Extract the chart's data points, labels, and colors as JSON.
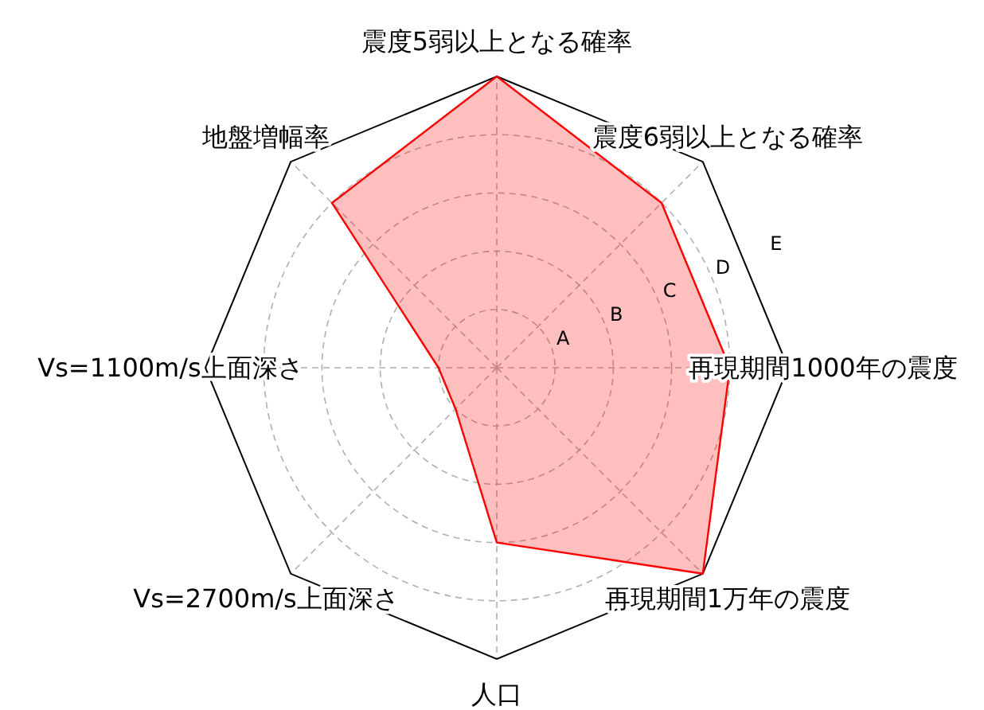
{
  "chart_data": {
    "type": "radar",
    "categories": [
      "震度5弱以上となる確率",
      "震度6弱以上となる確率",
      "再現期間1000年の震度",
      "再現期間1万年の震度",
      "人口",
      "Vs=2700m/s上面深さ",
      "Vs=1100m/s上面深さ",
      "地盤増幅率"
    ],
    "series": [
      {
        "color": "#ff0000",
        "values": [
          5,
          4,
          4,
          5,
          3,
          1,
          1,
          4
        ]
      }
    ],
    "ylim": [
      0,
      5
    ],
    "yticks": [
      {
        "value": 1,
        "label": "A"
      },
      {
        "value": 2,
        "label": "B"
      },
      {
        "value": 3,
        "label": "C"
      },
      {
        "value": 4,
        "label": "D"
      },
      {
        "value": 5,
        "label": "E"
      }
    ],
    "grid": true
  }
}
